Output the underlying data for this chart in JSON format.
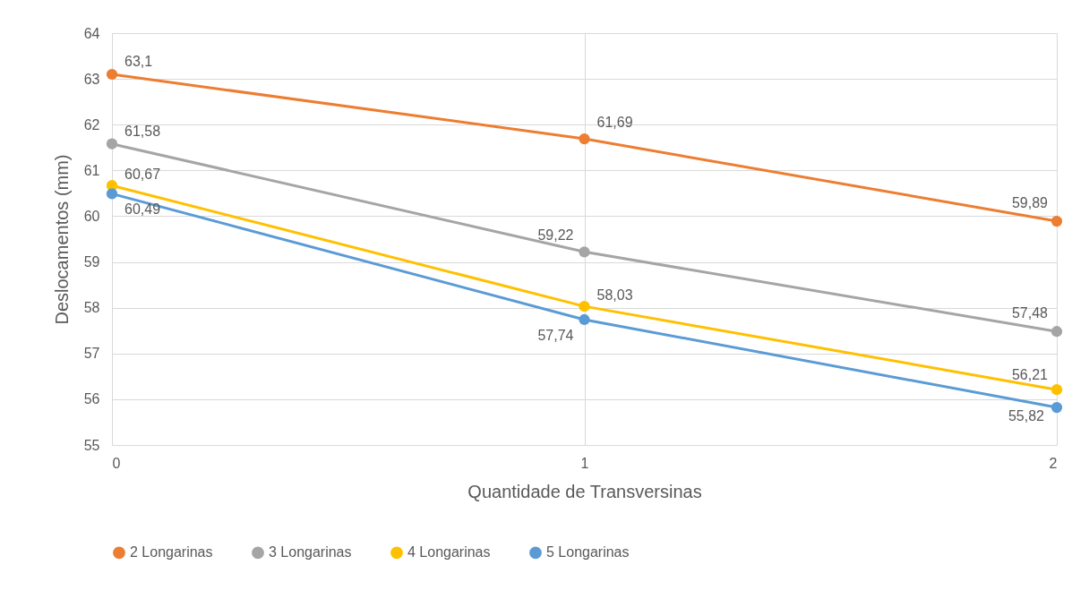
{
  "chart_data": {
    "type": "line",
    "xlabel": "Quantidade de Transversinas",
    "ylabel": "Deslocamentos (mm)",
    "x": [
      0,
      1,
      2
    ],
    "xlim": [
      0,
      2
    ],
    "xticks": [
      0,
      1,
      2
    ],
    "ylim": [
      55,
      64
    ],
    "yticks": [
      55,
      56,
      57,
      58,
      59,
      60,
      61,
      62,
      63,
      64
    ],
    "grid": true,
    "legend": "bottom",
    "marker": "circle",
    "line_style": "solid",
    "series": [
      {
        "name": "2 Longarinas",
        "color": "#ed7d31",
        "values": [
          63.1,
          61.69,
          59.89
        ],
        "value_labels": [
          "63,1",
          "61,69",
          "59,89"
        ]
      },
      {
        "name": "3 Longarinas",
        "color": "#a5a5a5",
        "values": [
          61.58,
          59.22,
          57.48
        ],
        "value_labels": [
          "61,58",
          "59,22",
          "57,48"
        ]
      },
      {
        "name": "4 Longarinas",
        "color": "#ffc000",
        "values": [
          60.67,
          58.03,
          56.21
        ],
        "value_labels": [
          "60,67",
          "58,03",
          "56,21"
        ]
      },
      {
        "name": "5 Longarinas",
        "color": "#5b9bd5",
        "values": [
          60.49,
          57.74,
          55.82
        ],
        "value_labels": [
          "60,49",
          "57,74",
          "55,82"
        ]
      }
    ]
  }
}
